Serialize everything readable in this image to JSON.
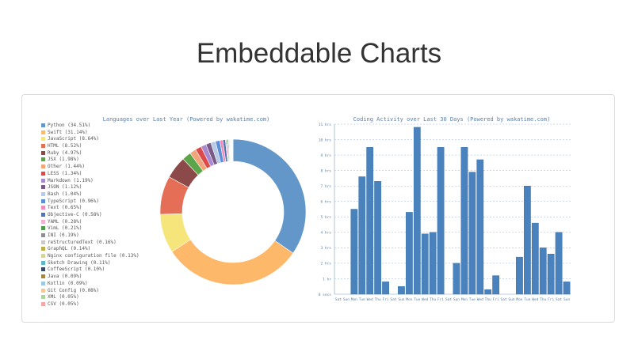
{
  "page": {
    "title": "Embeddable Charts"
  },
  "chart_data": [
    {
      "type": "pie",
      "title": "Languages over Last Year (Powered by wakatime.com)",
      "legend_position": "left",
      "slices": [
        {
          "label": "Python (34.51%)",
          "value": 34.51,
          "color": "#6497c9"
        },
        {
          "label": "Swift (31.14%)",
          "value": 31.14,
          "color": "#fdb86a"
        },
        {
          "label": "JavaScript (8.64%)",
          "value": 8.64,
          "color": "#f6e57a"
        },
        {
          "label": "HTML (8.52%)",
          "value": 8.52,
          "color": "#e56e57"
        },
        {
          "label": "Ruby (4.97%)",
          "value": 4.97,
          "color": "#8b4a49"
        },
        {
          "label": "JSX (1.98%)",
          "value": 1.98,
          "color": "#5da54a"
        },
        {
          "label": "Other (1.44%)",
          "value": 1.44,
          "color": "#f2a47a"
        },
        {
          "label": "LESS (1.34%)",
          "value": 1.34,
          "color": "#dc4a4a"
        },
        {
          "label": "Markdown (1.19%)",
          "value": 1.19,
          "color": "#a98ad0"
        },
        {
          "label": "JSON (1.12%)",
          "value": 1.12,
          "color": "#7a5a86"
        },
        {
          "label": "Bash (1.04%)",
          "value": 1.04,
          "color": "#b8cbe6"
        },
        {
          "label": "TypeScript (0.96%)",
          "value": 0.96,
          "color": "#5b8fd8"
        },
        {
          "label": "Text (0.65%)",
          "value": 0.65,
          "color": "#f08cb8"
        },
        {
          "label": "Objective-C (0.58%)",
          "value": 0.58,
          "color": "#4f74b8"
        },
        {
          "label": "YAML (0.28%)",
          "value": 0.28,
          "color": "#f4b0d0"
        },
        {
          "label": "VimL (0.21%)",
          "value": 0.21,
          "color": "#4d9a50"
        },
        {
          "label": "INI (0.19%)",
          "value": 0.19,
          "color": "#8e8e8e"
        },
        {
          "label": "reStructuredText (0.16%)",
          "value": 0.16,
          "color": "#c9c9c9"
        },
        {
          "label": "GraphQL (0.14%)",
          "value": 0.14,
          "color": "#b8b04a"
        },
        {
          "label": "Nginx configuration file (0.13%)",
          "value": 0.13,
          "color": "#d6d68e"
        },
        {
          "label": "Sketch Drawing (0.11%)",
          "value": 0.11,
          "color": "#5fb8c8"
        },
        {
          "label": "CoffeeScript (0.10%)",
          "value": 0.1,
          "color": "#3a4a6a"
        },
        {
          "label": "Java (0.09%)",
          "value": 0.09,
          "color": "#a8843e"
        },
        {
          "label": "Kotlin (0.09%)",
          "value": 0.09,
          "color": "#9ec9e4"
        },
        {
          "label": "Git Config (0.08%)",
          "value": 0.08,
          "color": "#f4c890"
        },
        {
          "label": "XML (0.05%)",
          "value": 0.05,
          "color": "#a8d89a"
        },
        {
          "label": "CSV (0.05%)",
          "value": 0.05,
          "color": "#f4a8a8"
        }
      ]
    },
    {
      "type": "bar",
      "title": "Coding Activity over Last 30 Days (Powered by wakatime.com)",
      "bar_color": "#4a82bd",
      "ylim": [
        0,
        11
      ],
      "y_ticks": [
        {
          "value": 0,
          "label": "0 secs"
        },
        {
          "value": 1,
          "label": "1 hr"
        },
        {
          "value": 2,
          "label": "2 hrs"
        },
        {
          "value": 3,
          "label": "3 hrs"
        },
        {
          "value": 4,
          "label": "4 hrs"
        },
        {
          "value": 5,
          "label": "5 hrs"
        },
        {
          "value": 6,
          "label": "6 hrs"
        },
        {
          "value": 7,
          "label": "7 hrs"
        },
        {
          "value": 8,
          "label": "8 hrs"
        },
        {
          "value": 9,
          "label": "9 hrs"
        },
        {
          "value": 10,
          "label": "10 hrs"
        },
        {
          "value": 11,
          "label": "11 hrs"
        }
      ],
      "categories": [
        "Sat",
        "Sun",
        "Mon",
        "Tue",
        "Wed",
        "Thu",
        "Fri",
        "Sat",
        "Sun",
        "Mon",
        "Tue",
        "Wed",
        "Thu",
        "Fri",
        "Sat",
        "Sun",
        "Mon",
        "Tue",
        "Wed",
        "Thu",
        "Fri",
        "Sat",
        "Sun",
        "Mon",
        "Tue",
        "Wed",
        "Thu",
        "Fri",
        "Sat",
        "Sun"
      ],
      "tick_labels": [
        "Sat",
        "Sun",
        "Mon",
        "Tue",
        "Wed",
        "Thu",
        "Fri",
        "Sat",
        "Sun",
        "Mon",
        "Tue",
        "Wed",
        "Thu",
        "Fri",
        "Sat",
        "Sun",
        "Mon",
        "Tue",
        "Wed",
        "Thu",
        "Fri",
        "Sat",
        "Sun",
        "Mon",
        "Tue",
        "Wed",
        "Thu",
        "Fri",
        "Sat",
        "Sun"
      ],
      "values": [
        0,
        0,
        5.5,
        7.6,
        9.5,
        7.3,
        0.8,
        0,
        0.5,
        5.3,
        10.8,
        3.9,
        4.0,
        9.5,
        0,
        2.0,
        9.5,
        7.9,
        8.7,
        0.3,
        1.2,
        0,
        0,
        2.4,
        7.0,
        4.6,
        3.0,
        2.6,
        4.0,
        0.8
      ]
    }
  ]
}
